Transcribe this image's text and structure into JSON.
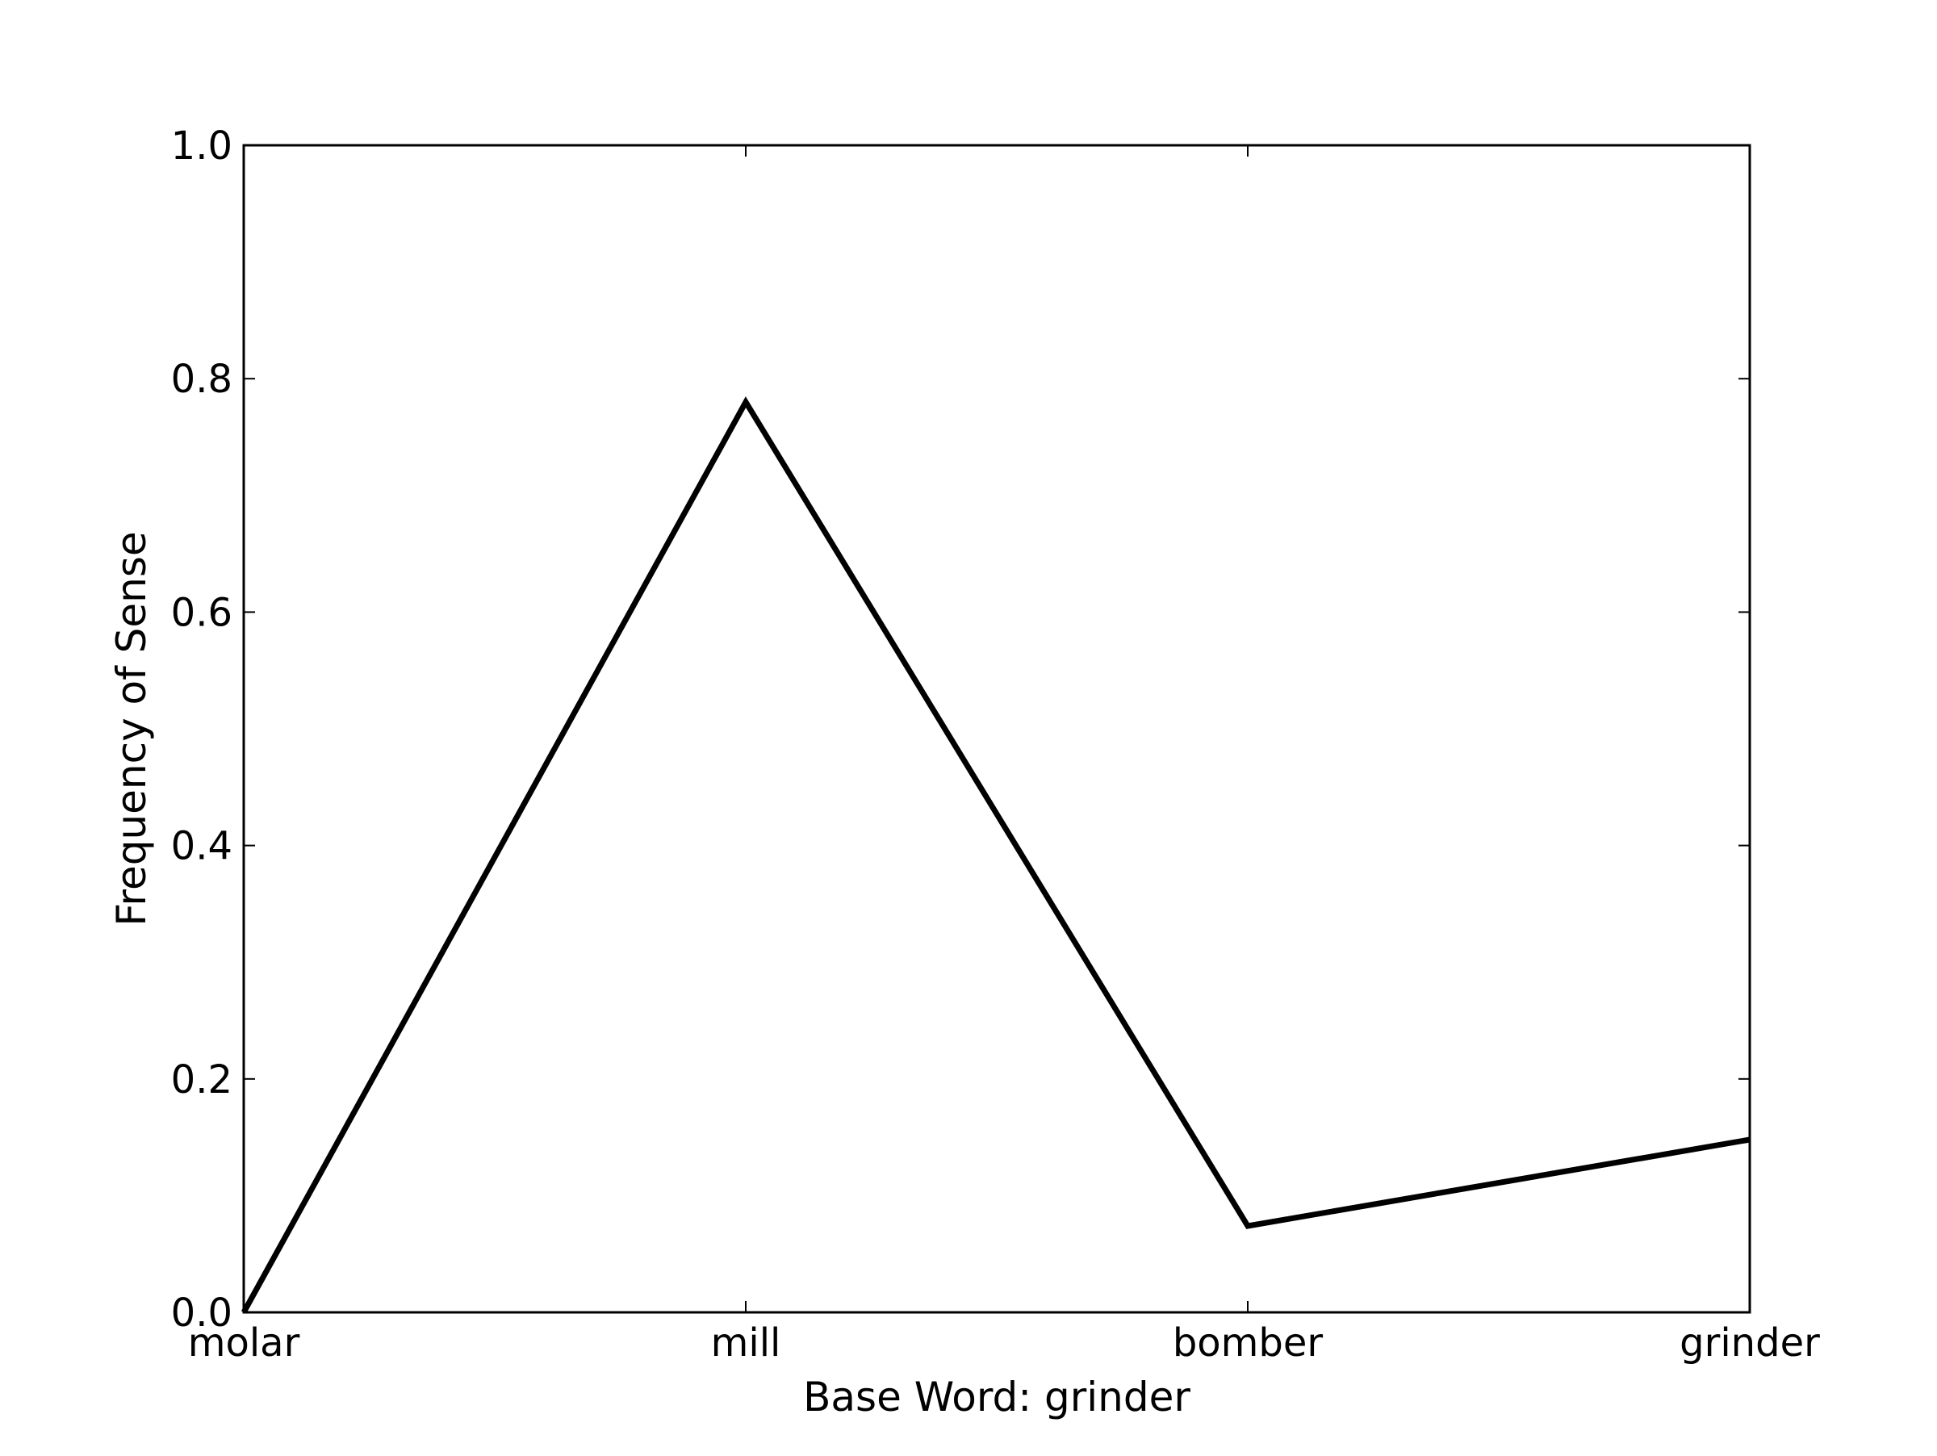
{
  "chart_data": {
    "type": "line",
    "title": "",
    "xlabel": "Base Word: grinder",
    "ylabel": "Frequency of Sense",
    "categories": [
      "molar",
      "mill",
      "bomber",
      "grinder"
    ],
    "series": [
      {
        "values": [
          0.0,
          0.78,
          0.074,
          0.148
        ],
        "color": "#000000"
      }
    ],
    "ylim": [
      0.0,
      1.0
    ],
    "yticks": [
      "0.0",
      "0.2",
      "0.4",
      "0.6",
      "0.8",
      "1.0"
    ],
    "grid": false,
    "legend": "none"
  }
}
